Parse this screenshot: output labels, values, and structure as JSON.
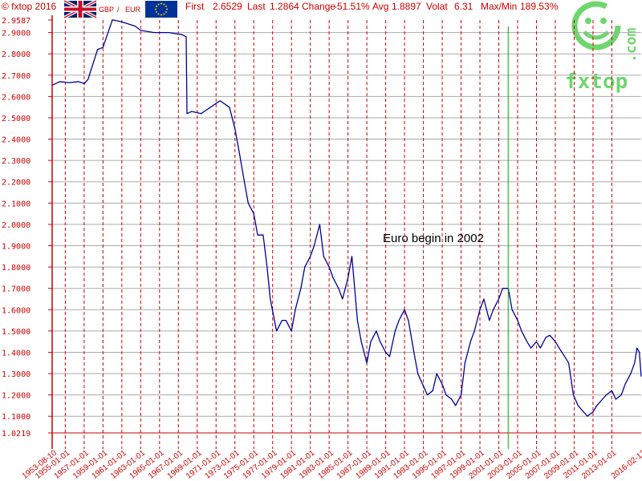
{
  "header": {
    "copyright": "© fxtop 2016",
    "pair_base": "GBP",
    "pair_sep": "/",
    "pair_quote": "EUR",
    "first_label": "First",
    "first_value": "2.6529",
    "last_label": "Last",
    "last_value": "1.2864",
    "change_label": "Change",
    "change_value": "-51.51%",
    "avg_label": "Avg",
    "avg_value": "1.8897",
    "volat_label": "Volat",
    "volat_value": "6.31",
    "maxmin_label": "Max/Min",
    "maxmin_value": "189.53%"
  },
  "watermark": {
    "text": "fxtop",
    "side_text": ".com"
  },
  "colors": {
    "axis": "#cc0000",
    "grid": "#cc0000",
    "series": "#000099",
    "marker": "#00aa00",
    "watermark": "#6fd66f"
  },
  "chart_data": {
    "type": "line",
    "ylim": [
      1.0219,
      2.9587
    ],
    "xlim": [
      "1953-08-10",
      "2016-02-12"
    ],
    "y_ticks": [
      "2.9587",
      "2.9000",
      "2.8000",
      "2.7000",
      "2.6000",
      "2.5000",
      "2.4000",
      "2.3000",
      "2.2000",
      "2.1000",
      "2.0000",
      "1.9000",
      "1.8000",
      "1.7000",
      "1.6000",
      "1.5000",
      "1.4000",
      "1.3000",
      "1.2000",
      "1.1000",
      "1.0219"
    ],
    "x_ticks": [
      "1953-08-10",
      "1955-01-01",
      "1957-01-01",
      "1959-01-01",
      "1961-01-01",
      "1963-01-01",
      "1965-01-01",
      "1967-01-01",
      "1969-01-01",
      "1971-01-01",
      "1973-01-01",
      "1975-01-01",
      "1977-01-01",
      "1979-01-01",
      "1981-01-01",
      "1983-01-01",
      "1985-01-01",
      "1987-01-01",
      "1989-01-01",
      "1991-01-01",
      "1993-01-01",
      "1995-01-01",
      "1997-01-01",
      "1999-01-01",
      "2001-01-01",
      "2003-01-01",
      "2005-01-01",
      "2007-01-01",
      "2009-01-01",
      "2011-01-01",
      "2013-01-01",
      "2016-02-12"
    ],
    "grid": true,
    "annotation": {
      "text": "Euro begin in 2002",
      "date": "2002-01-01"
    },
    "series": [
      {
        "x": [
          "1953-08-10",
          "1954-06-01",
          "1955-06-01",
          "1956-06-01",
          "1957-01-01",
          "1957-06-01",
          "1958-06-01",
          "1959-01-01",
          "1960-01-01",
          "1961-01-01",
          "1962-06-01",
          "1963-01-01",
          "1964-06-01",
          "1966-01-01",
          "1967-06-01",
          "1967-11-01",
          "1967-12-01",
          "1968-06-01",
          "1969-06-01",
          "1970-06-01",
          "1971-06-01",
          "1972-06-01",
          "1973-01-01",
          "1973-06-01",
          "1974-01-01",
          "1974-06-01",
          "1975-01-01",
          "1975-06-01",
          "1976-01-01",
          "1976-06-01",
          "1976-10-01",
          "1977-06-01",
          "1978-01-01",
          "1978-06-01",
          "1979-01-01",
          "1979-06-01",
          "1980-01-01",
          "1980-06-01",
          "1981-01-01",
          "1981-06-01",
          "1982-01-01",
          "1982-06-01",
          "1983-01-01",
          "1983-06-01",
          "1984-01-01",
          "1984-06-01",
          "1985-01-01",
          "1985-06-01",
          "1986-01-01",
          "1986-06-01",
          "1987-01-01",
          "1987-06-01",
          "1988-01-01",
          "1988-06-01",
          "1989-01-01",
          "1989-06-01",
          "1990-01-01",
          "1990-06-01",
          "1991-01-01",
          "1991-06-01",
          "1992-01-01",
          "1992-06-01",
          "1992-12-01",
          "1993-06-01",
          "1994-01-01",
          "1994-06-01",
          "1995-01-01",
          "1995-06-01",
          "1996-01-01",
          "1996-06-01",
          "1997-01-01",
          "1997-06-01",
          "1998-01-01",
          "1998-06-01",
          "1999-01-01",
          "1999-06-01",
          "2000-01-01",
          "2000-06-01",
          "2001-01-01",
          "2001-06-01",
          "2002-01-01",
          "2002-06-01",
          "2003-01-01",
          "2003-06-01",
          "2004-01-01",
          "2004-06-01",
          "2005-01-01",
          "2005-06-01",
          "2006-01-01",
          "2006-06-01",
          "2007-01-01",
          "2007-06-01",
          "2008-01-01",
          "2008-06-01",
          "2008-12-01",
          "2009-06-01",
          "2010-01-01",
          "2010-06-01",
          "2011-01-01",
          "2011-06-01",
          "2012-01-01",
          "2012-06-01",
          "2013-01-01",
          "2013-06-01",
          "2014-01-01",
          "2014-06-01",
          "2015-01-01",
          "2015-06-01",
          "2015-09-01",
          "2015-12-01",
          "2016-02-12"
        ],
        "y": [
          2.6529,
          2.67,
          2.665,
          2.67,
          2.66,
          2.68,
          2.82,
          2.83,
          2.96,
          2.95,
          2.93,
          2.91,
          2.9,
          2.9,
          2.89,
          2.88,
          2.52,
          2.53,
          2.52,
          2.55,
          2.58,
          2.55,
          2.45,
          2.35,
          2.2,
          2.1,
          2.05,
          1.95,
          1.95,
          1.8,
          1.65,
          1.5,
          1.55,
          1.55,
          1.5,
          1.6,
          1.7,
          1.8,
          1.85,
          1.9,
          2.0,
          1.85,
          1.8,
          1.75,
          1.7,
          1.65,
          1.75,
          1.85,
          1.55,
          1.45,
          1.35,
          1.45,
          1.5,
          1.45,
          1.4,
          1.38,
          1.5,
          1.55,
          1.6,
          1.55,
          1.4,
          1.3,
          1.25,
          1.2,
          1.22,
          1.3,
          1.25,
          1.2,
          1.18,
          1.15,
          1.2,
          1.35,
          1.45,
          1.5,
          1.6,
          1.65,
          1.55,
          1.6,
          1.65,
          1.7,
          1.7,
          1.6,
          1.55,
          1.5,
          1.45,
          1.42,
          1.45,
          1.42,
          1.47,
          1.48,
          1.45,
          1.42,
          1.38,
          1.35,
          1.2,
          1.15,
          1.12,
          1.1,
          1.12,
          1.15,
          1.18,
          1.2,
          1.22,
          1.18,
          1.2,
          1.25,
          1.3,
          1.35,
          1.42,
          1.4,
          1.2864
        ]
      }
    ]
  }
}
